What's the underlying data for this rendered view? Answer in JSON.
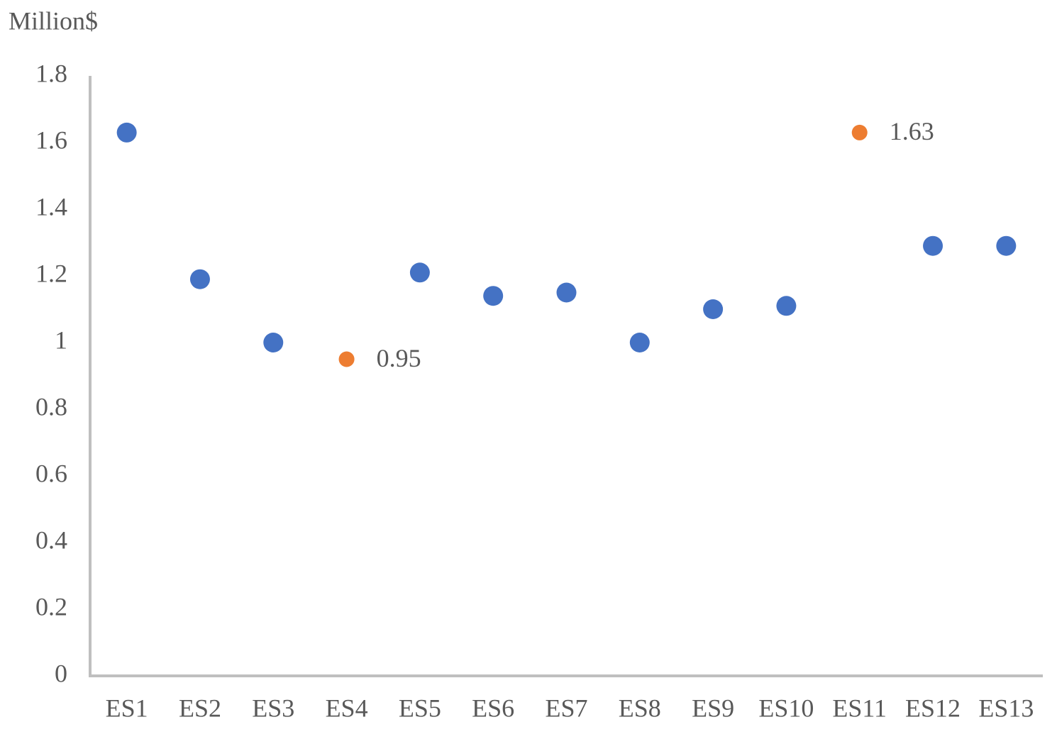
{
  "chart_data": {
    "type": "scatter",
    "y_label": "Million$",
    "categories": [
      "ES1",
      "ES2",
      "ES3",
      "ES4",
      "ES5",
      "ES6",
      "ES7",
      "ES8",
      "ES9",
      "ES10",
      "ES11",
      "ES12",
      "ES13"
    ],
    "series": [
      {
        "color": "#4472c4",
        "values": [
          1.63,
          1.19,
          1.0,
          null,
          1.21,
          1.14,
          1.15,
          1.0,
          1.1,
          1.11,
          null,
          1.29,
          1.29
        ]
      },
      {
        "color": "#ed7d31",
        "data_labels": true,
        "values": [
          null,
          null,
          null,
          0.95,
          null,
          null,
          null,
          null,
          null,
          null,
          1.63,
          null,
          null
        ]
      }
    ],
    "ylim": [
      0,
      1.8
    ],
    "yticks": [
      0,
      0.2,
      0.4,
      0.6,
      0.8,
      1,
      1.2,
      1.4,
      1.6,
      1.8
    ],
    "grid": false
  }
}
